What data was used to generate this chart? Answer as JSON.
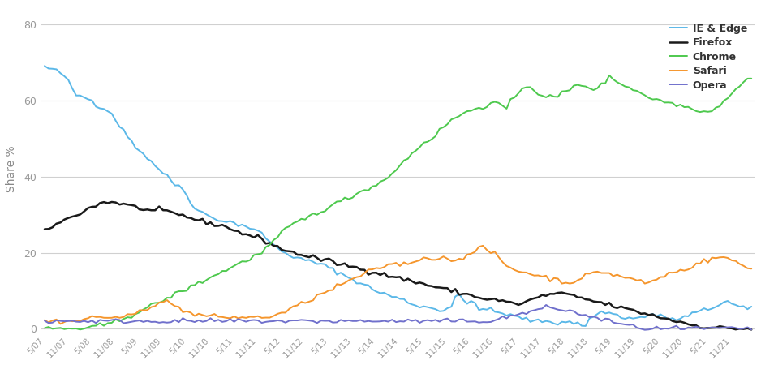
{
  "ylabel": "Share %",
  "background_color": "#ffffff",
  "grid_color": "#d0d0d0",
  "ylim": [
    -1,
    85
  ],
  "yticks": [
    0,
    20,
    40,
    60,
    80
  ],
  "x_labels": [
    "5/07",
    "11/07",
    "5/08",
    "11/08",
    "5/09",
    "11/09",
    "5/10",
    "11/10",
    "5/11",
    "11/11",
    "5/12",
    "11/12",
    "5/13",
    "11/13",
    "5/14",
    "11/14",
    "5/15",
    "11/15",
    "5/16",
    "11/16",
    "5/17",
    "11/17",
    "5/18",
    "11/18",
    "5/19",
    "11/19",
    "5/20",
    "11/20",
    "5/21",
    "11/21"
  ],
  "n_ticks": 30,
  "tick_every": 6,
  "series": {
    "IE & Edge": {
      "color": "#5bb8e8",
      "linewidth": 1.4,
      "values": [
        69.0,
        68.5,
        68.2,
        67.8,
        67.3,
        66.5,
        65.0,
        63.0,
        61.5,
        61.2,
        61.0,
        60.5,
        60.0,
        59.0,
        58.5,
        58.0,
        57.5,
        56.5,
        55.0,
        53.5,
        52.0,
        50.5,
        49.5,
        48.0,
        47.0,
        46.0,
        45.0,
        44.0,
        43.0,
        42.0,
        41.0,
        40.0,
        39.0,
        38.0,
        37.5,
        37.0,
        35.0,
        33.5,
        32.0,
        31.0,
        30.5,
        30.0,
        29.5,
        29.0,
        28.8,
        28.5,
        28.2,
        28.0,
        27.8,
        27.5,
        27.3,
        27.0,
        26.5,
        26.0,
        25.5,
        25.0,
        24.0,
        23.0,
        22.0,
        21.0,
        20.5,
        20.0,
        19.5,
        19.0,
        18.5,
        18.2,
        18.0,
        17.8,
        17.5,
        17.2,
        17.0,
        16.5,
        16.0,
        15.5,
        15.0,
        14.5,
        14.0,
        13.5,
        13.0,
        12.5,
        12.0,
        11.5,
        11.0,
        10.5,
        10.0,
        9.5,
        9.2,
        8.8,
        8.5,
        8.2,
        7.8,
        7.5,
        7.0,
        6.5,
        6.2,
        6.0,
        5.8,
        5.6,
        5.4,
        5.2,
        5.0,
        4.8,
        5.5,
        6.0,
        8.5,
        9.0,
        7.0,
        6.5,
        7.2,
        6.8,
        5.5,
        5.2,
        5.0,
        4.8,
        4.5,
        4.2,
        4.0,
        3.8,
        3.5,
        3.2,
        3.0,
        2.8,
        2.5,
        2.2,
        2.0,
        1.8,
        2.0,
        2.2,
        1.8,
        1.5,
        1.5,
        1.8,
        2.0,
        1.8,
        1.5,
        1.2,
        1.0,
        0.8,
        2.5,
        3.5,
        3.8,
        4.2,
        4.5,
        4.2,
        3.8,
        3.5,
        3.2,
        3.0,
        2.8,
        2.6,
        2.8,
        3.0,
        3.2,
        3.5,
        3.8,
        3.5,
        3.2,
        3.0,
        2.8,
        2.6,
        2.5,
        2.4,
        3.0,
        3.5,
        4.0,
        4.2,
        4.5,
        4.8,
        5.0,
        5.5,
        6.0,
        6.5,
        7.0,
        7.2,
        6.5,
        6.0,
        5.8,
        5.5,
        5.2,
        5.0
      ]
    },
    "Firefox": {
      "color": "#1a1a1a",
      "linewidth": 1.8,
      "values": [
        26.0,
        26.5,
        27.0,
        27.5,
        28.0,
        28.5,
        29.0,
        29.5,
        30.0,
        30.5,
        31.0,
        31.5,
        32.0,
        32.5,
        33.0,
        33.2,
        33.3,
        33.3,
        33.2,
        33.0,
        32.8,
        32.5,
        32.2,
        32.0,
        31.8,
        31.5,
        31.2,
        31.0,
        31.0,
        31.0,
        31.0,
        30.8,
        30.5,
        30.2,
        30.0,
        29.8,
        29.5,
        29.2,
        28.8,
        28.5,
        28.2,
        28.0,
        27.8,
        27.5,
        27.2,
        27.0,
        26.8,
        26.5,
        26.0,
        25.5,
        25.0,
        24.8,
        24.5,
        24.2,
        24.0,
        23.5,
        23.0,
        22.5,
        22.0,
        21.5,
        21.0,
        20.5,
        20.2,
        20.0,
        19.8,
        19.5,
        19.2,
        19.0,
        18.8,
        18.5,
        18.2,
        18.0,
        17.8,
        17.5,
        17.2,
        17.0,
        16.8,
        16.5,
        16.2,
        16.0,
        15.8,
        15.5,
        15.2,
        15.0,
        14.8,
        14.5,
        14.2,
        14.0,
        13.8,
        13.5,
        13.2,
        13.0,
        12.8,
        12.5,
        12.2,
        12.0,
        11.8,
        11.5,
        11.2,
        11.0,
        10.8,
        10.5,
        10.2,
        10.0,
        9.8,
        9.5,
        9.2,
        9.0,
        8.8,
        8.5,
        8.2,
        8.0,
        7.8,
        7.5,
        7.8,
        7.5,
        7.2,
        7.0,
        6.8,
        6.5,
        6.5,
        6.8,
        7.0,
        7.5,
        8.0,
        8.2,
        8.5,
        8.8,
        9.0,
        9.2,
        9.5,
        9.2,
        9.0,
        8.8,
        8.5,
        8.2,
        8.0,
        7.8,
        7.5,
        7.2,
        7.0,
        6.8,
        6.5,
        6.2,
        6.0,
        5.8,
        5.5,
        5.2,
        5.0,
        4.8,
        4.5,
        4.2,
        4.0,
        3.8,
        3.5,
        3.2,
        3.0,
        2.8,
        2.5,
        2.2,
        2.0,
        1.8,
        1.5,
        1.3,
        1.0,
        0.8,
        0.6,
        0.5,
        0.4,
        0.3,
        0.2,
        0.2,
        0.2,
        0.2,
        0.1,
        0.1,
        0.0,
        0.0,
        0.0,
        0.0
      ]
    },
    "Chrome": {
      "color": "#4ec94e",
      "linewidth": 1.4,
      "values": [
        0.0,
        0.0,
        0.0,
        0.0,
        0.0,
        0.0,
        0.0,
        0.0,
        0.0,
        0.0,
        0.0,
        0.2,
        0.3,
        0.5,
        0.8,
        1.0,
        1.2,
        1.5,
        1.8,
        2.2,
        2.8,
        3.2,
        3.5,
        4.0,
        4.5,
        5.0,
        5.5,
        6.0,
        6.5,
        7.0,
        7.5,
        8.0,
        8.5,
        9.0,
        9.5,
        10.0,
        10.5,
        11.0,
        11.5,
        12.0,
        12.5,
        13.0,
        13.5,
        14.0,
        14.5,
        15.0,
        15.5,
        16.0,
        16.5,
        17.0,
        17.5,
        18.0,
        18.5,
        19.0,
        19.5,
        20.0,
        21.0,
        22.0,
        23.0,
        24.0,
        25.0,
        26.0,
        27.0,
        27.5,
        28.0,
        28.5,
        29.0,
        29.5,
        30.0,
        30.5,
        31.0,
        31.5,
        32.0,
        32.5,
        33.0,
        33.5,
        34.0,
        34.5,
        35.0,
        35.5,
        36.0,
        36.5,
        37.0,
        37.5,
        38.0,
        38.5,
        39.0,
        40.0,
        41.0,
        42.0,
        43.0,
        44.0,
        45.0,
        46.0,
        47.0,
        48.0,
        49.0,
        49.5,
        50.0,
        51.0,
        52.0,
        53.0,
        54.0,
        55.0,
        55.5,
        56.0,
        56.5,
        57.0,
        57.5,
        58.0,
        58.2,
        58.5,
        58.8,
        59.0,
        59.2,
        59.5,
        58.5,
        57.8,
        59.5,
        60.5,
        62.0,
        63.5,
        64.0,
        63.5,
        62.8,
        62.0,
        61.5,
        61.2,
        61.0,
        60.8,
        61.0,
        62.0,
        62.5,
        63.0,
        63.5,
        64.0,
        64.2,
        63.8,
        63.5,
        63.2,
        63.0,
        64.0,
        65.0,
        66.5,
        65.8,
        65.0,
        64.5,
        64.0,
        63.5,
        63.0,
        62.5,
        62.0,
        61.5,
        61.0,
        60.5,
        60.2,
        60.0,
        59.8,
        59.5,
        59.2,
        59.0,
        58.8,
        58.5,
        58.2,
        58.0,
        57.8,
        57.5,
        57.2,
        57.0,
        57.5,
        58.0,
        59.0,
        60.0,
        61.0,
        62.0,
        63.0,
        64.0,
        65.0,
        65.5,
        66.0
      ]
    },
    "Safari": {
      "color": "#f5962d",
      "linewidth": 1.4,
      "values": [
        2.0,
        2.0,
        2.0,
        2.0,
        2.0,
        2.0,
        2.0,
        2.0,
        2.0,
        2.2,
        2.5,
        2.8,
        3.0,
        3.0,
        3.0,
        3.0,
        3.0,
        3.0,
        3.0,
        3.0,
        3.0,
        3.2,
        3.5,
        4.0,
        4.5,
        5.0,
        5.5,
        6.0,
        6.5,
        7.0,
        7.0,
        7.0,
        6.5,
        6.0,
        5.5,
        5.0,
        4.5,
        4.0,
        3.8,
        3.6,
        3.5,
        3.4,
        3.3,
        3.2,
        3.1,
        3.0,
        3.0,
        3.0,
        3.0,
        3.0,
        3.0,
        3.0,
        3.0,
        3.0,
        3.0,
        3.0,
        3.0,
        3.2,
        3.5,
        3.8,
        4.0,
        4.5,
        5.0,
        5.5,
        6.0,
        6.5,
        7.0,
        7.5,
        8.0,
        8.5,
        9.0,
        9.5,
        10.0,
        10.5,
        11.0,
        11.5,
        12.0,
        12.5,
        13.0,
        13.5,
        14.0,
        14.5,
        15.0,
        15.2,
        15.5,
        16.0,
        16.5,
        17.0,
        17.0,
        17.0,
        17.0,
        17.0,
        17.0,
        17.5,
        18.0,
        18.5,
        18.5,
        18.5,
        18.5,
        18.5,
        18.5,
        18.5,
        18.5,
        18.2,
        18.0,
        18.5,
        19.0,
        19.5,
        19.8,
        20.0,
        21.0,
        21.5,
        20.8,
        20.2,
        19.5,
        18.8,
        17.5,
        16.5,
        16.0,
        15.5,
        15.2,
        15.0,
        14.8,
        14.5,
        14.2,
        14.0,
        13.8,
        13.5,
        13.2,
        13.0,
        12.8,
        12.5,
        12.2,
        12.0,
        12.5,
        13.0,
        13.5,
        14.0,
        14.2,
        14.5,
        14.8,
        15.0,
        14.8,
        14.5,
        14.2,
        14.0,
        13.8,
        13.5,
        13.2,
        13.0,
        12.8,
        12.5,
        12.2,
        12.0,
        12.5,
        13.0,
        13.5,
        14.0,
        14.5,
        14.8,
        15.0,
        15.2,
        15.5,
        16.0,
        16.5,
        17.0,
        17.5,
        17.8,
        18.0,
        18.2,
        18.5,
        18.8,
        19.0,
        18.5,
        18.0,
        17.5,
        17.0,
        16.5,
        16.0,
        15.8
      ]
    },
    "Opera": {
      "color": "#7070cc",
      "linewidth": 1.4,
      "values": [
        2.0,
        2.0,
        2.0,
        2.0,
        2.0,
        2.0,
        2.0,
        2.0,
        2.0,
        2.0,
        2.0,
        2.0,
        2.0,
        2.0,
        2.0,
        2.0,
        2.0,
        2.0,
        2.0,
        2.0,
        2.0,
        2.0,
        2.0,
        2.0,
        2.0,
        2.0,
        2.0,
        2.0,
        2.0,
        2.0,
        2.0,
        2.0,
        2.0,
        2.0,
        2.0,
        2.0,
        2.0,
        2.0,
        2.0,
        2.0,
        2.0,
        2.0,
        2.0,
        2.0,
        2.0,
        2.0,
        2.0,
        2.0,
        2.0,
        2.0,
        2.0,
        2.0,
        2.0,
        2.0,
        2.0,
        2.0,
        2.0,
        2.0,
        2.0,
        2.0,
        2.0,
        2.0,
        2.0,
        2.0,
        2.0,
        2.0,
        2.0,
        2.0,
        2.0,
        2.0,
        2.0,
        2.0,
        2.0,
        2.0,
        2.0,
        2.0,
        2.0,
        2.0,
        2.0,
        2.0,
        2.0,
        2.0,
        2.0,
        2.0,
        2.0,
        2.0,
        2.0,
        2.0,
        2.0,
        2.0,
        2.0,
        2.0,
        2.0,
        2.0,
        2.0,
        2.0,
        2.0,
        2.0,
        2.0,
        2.0,
        2.0,
        2.0,
        2.0,
        2.0,
        2.0,
        2.0,
        2.0,
        2.0,
        2.0,
        2.0,
        2.0,
        2.0,
        2.0,
        2.0,
        2.2,
        2.5,
        2.8,
        3.0,
        3.2,
        3.5,
        3.8,
        4.0,
        4.2,
        4.5,
        4.8,
        5.0,
        5.2,
        5.5,
        5.8,
        5.5,
        5.2,
        5.0,
        4.8,
        4.5,
        4.2,
        4.0,
        3.8,
        3.5,
        3.2,
        3.0,
        2.8,
        2.5,
        2.2,
        2.0,
        1.8,
        1.5,
        1.2,
        1.0,
        0.8,
        0.5,
        0.3,
        0.2,
        0.1,
        0.0,
        0.0,
        0.0,
        0.0,
        0.0,
        0.0,
        0.0,
        0.0,
        0.0,
        0.0,
        0.0,
        0.0,
        0.0,
        0.0,
        0.0,
        0.0,
        0.0,
        0.0,
        0.0,
        0.0,
        0.0,
        0.0,
        0.0,
        0.0,
        0.0,
        0.0,
        0.0
      ]
    }
  }
}
